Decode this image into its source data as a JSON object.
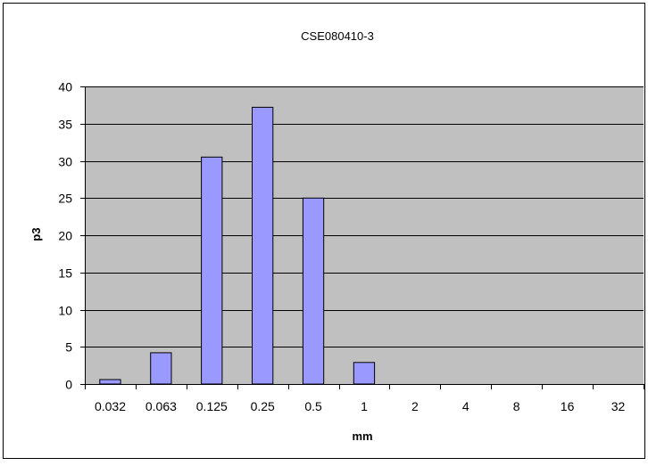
{
  "chart_data": {
    "type": "bar",
    "title": "CSE080410-3",
    "xlabel": "mm",
    "ylabel": "p3",
    "categories": [
      "0.032",
      "0.063",
      "0.125",
      "0.25",
      "0.5",
      "1",
      "2",
      "4",
      "8",
      "16",
      "32"
    ],
    "values": [
      0.6,
      4.2,
      30.5,
      37.2,
      25.0,
      2.9,
      0,
      0,
      0,
      0,
      0
    ],
    "ylim": [
      0,
      40
    ],
    "yticks": [
      "0",
      "5",
      "10",
      "15",
      "20",
      "25",
      "30",
      "35",
      "40"
    ],
    "grid": "horizontal",
    "legend": "none",
    "colors": {
      "plot_background": "#c0c0c0",
      "bar_fill": "#9999ff",
      "bar_stroke": "#000000",
      "gridline": "#000000",
      "frame": "#000000"
    }
  }
}
